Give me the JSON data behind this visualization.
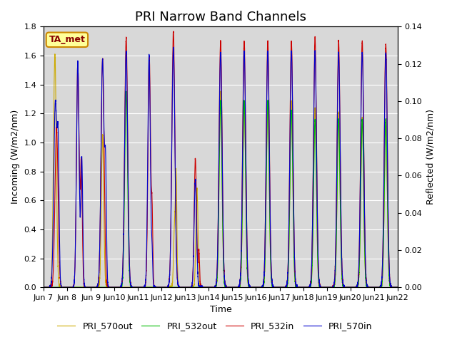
{
  "title": "PRI Narrow Band Channels",
  "xlabel": "Time",
  "ylabel_left": "Incoming (W/m2/nm)",
  "ylabel_right": "Reflected (W/m2/nm)",
  "annotation": "TA_met",
  "ylim_left": [
    0,
    1.8
  ],
  "ylim_right": [
    0,
    0.14
  ],
  "yticks_left": [
    0.0,
    0.2,
    0.4,
    0.6,
    0.8,
    1.0,
    1.2,
    1.4,
    1.6,
    1.8
  ],
  "yticks_right": [
    0.0,
    0.02,
    0.04,
    0.06,
    0.08,
    0.1,
    0.12,
    0.14
  ],
  "xtick_labels": [
    "Jun 7",
    "Jun 8",
    "Jun 9",
    "Jun 10",
    "Jun 11",
    "Jun 12",
    "Jun 13",
    "Jun 14",
    "Jun 15",
    "Jun 16",
    "Jun 17",
    "Jun 18",
    "Jun 19",
    "Jun 20",
    "Jun 21",
    "Jun 22"
  ],
  "legend_labels": [
    "PRI_532in",
    "PRI_570in",
    "PRI_532out",
    "PRI_570out"
  ],
  "legend_colors": [
    "#cc0000",
    "#0000cc",
    "#00bb00",
    "#ccaa00"
  ],
  "background_color": "#d8d8d8",
  "grid_color": "#ffffff",
  "n_days": 15,
  "title_fontsize": 13,
  "label_fontsize": 9,
  "tick_fontsize": 8,
  "legend_fontsize": 9
}
